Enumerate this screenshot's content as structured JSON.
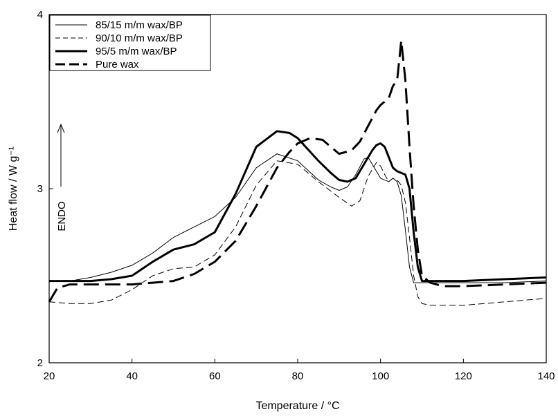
{
  "chart_data": {
    "type": "line",
    "xlabel": "Temperature / °C",
    "ylabel": "Heat flow / W g⁻¹",
    "xlim": [
      20,
      140
    ],
    "ylim": [
      2,
      4
    ],
    "xticks": [
      20,
      40,
      60,
      80,
      100,
      120,
      140
    ],
    "yticks": [
      2,
      3,
      4
    ],
    "grid": false,
    "legend_position": "top-left",
    "annotation": "ENDO",
    "series": [
      {
        "name": "85/15 m/m wax/BP",
        "style": "thin-solid",
        "x": [
          20,
          25,
          30,
          35,
          40,
          45,
          50,
          55,
          60,
          65,
          70,
          75,
          80,
          85,
          88,
          90,
          92,
          94,
          96,
          97,
          98,
          99,
          100,
          101,
          102,
          103,
          104,
          105,
          106,
          107,
          108,
          110,
          115,
          120,
          130,
          140
        ],
        "y": [
          2.47,
          2.47,
          2.49,
          2.52,
          2.56,
          2.63,
          2.72,
          2.78,
          2.84,
          2.95,
          3.12,
          3.2,
          3.16,
          3.05,
          3.01,
          2.99,
          3.01,
          3.08,
          3.17,
          3.18,
          3.14,
          3.1,
          3.06,
          3.05,
          3.04,
          3.06,
          3.04,
          2.96,
          2.76,
          2.55,
          2.46,
          2.46,
          2.46,
          2.46,
          2.46,
          2.47
        ]
      },
      {
        "name": "90/10 m/m wax/BP",
        "style": "thin-dashed",
        "x": [
          20,
          25,
          30,
          35,
          40,
          45,
          50,
          55,
          60,
          65,
          70,
          75,
          80,
          85,
          90,
          93,
          95,
          97,
          99,
          100,
          101,
          102,
          103,
          104,
          105,
          106,
          107,
          108,
          109,
          110,
          112,
          115,
          120,
          130,
          140
        ],
        "y": [
          2.35,
          2.34,
          2.34,
          2.36,
          2.42,
          2.5,
          2.54,
          2.55,
          2.62,
          2.78,
          3.02,
          3.16,
          3.14,
          3.04,
          2.95,
          2.9,
          2.93,
          3.07,
          3.15,
          3.13,
          3.08,
          3.04,
          3.06,
          3.05,
          3.02,
          2.92,
          2.72,
          2.5,
          2.38,
          2.34,
          2.33,
          2.33,
          2.33,
          2.35,
          2.37
        ]
      },
      {
        "name": "95/5 m/m wax/BP",
        "style": "thick-solid",
        "x": [
          20,
          25,
          30,
          35,
          40,
          45,
          50,
          55,
          60,
          65,
          70,
          75,
          78,
          80,
          85,
          88,
          90,
          92,
          94,
          96,
          98,
          99,
          100,
          101,
          102,
          103,
          104,
          105,
          106,
          107,
          108,
          109,
          110,
          112,
          115,
          120,
          130,
          140
        ],
        "y": [
          2.47,
          2.47,
          2.47,
          2.48,
          2.5,
          2.58,
          2.65,
          2.68,
          2.75,
          2.97,
          3.24,
          3.33,
          3.32,
          3.29,
          3.16,
          3.09,
          3.05,
          3.04,
          3.06,
          3.14,
          3.22,
          3.25,
          3.26,
          3.24,
          3.18,
          3.12,
          3.1,
          3.09,
          3.08,
          3.0,
          2.75,
          2.55,
          2.47,
          2.47,
          2.47,
          2.47,
          2.48,
          2.49
        ]
      },
      {
        "name": "Pure wax",
        "style": "thick-dashed",
        "x": [
          20,
          22,
          25,
          30,
          35,
          40,
          45,
          50,
          55,
          60,
          65,
          70,
          75,
          78,
          80,
          83,
          86,
          88,
          90,
          93,
          95,
          97,
          99,
          100,
          101,
          102,
          103,
          104,
          105,
          106,
          107,
          108,
          109,
          110,
          112,
          115,
          120,
          130,
          140
        ],
        "y": [
          2.35,
          2.43,
          2.45,
          2.45,
          2.45,
          2.45,
          2.46,
          2.47,
          2.51,
          2.58,
          2.7,
          2.9,
          3.12,
          3.21,
          3.26,
          3.29,
          3.28,
          3.24,
          3.2,
          3.22,
          3.27,
          3.36,
          3.45,
          3.48,
          3.5,
          3.52,
          3.59,
          3.62,
          3.85,
          3.62,
          3.24,
          2.9,
          2.65,
          2.5,
          2.46,
          2.44,
          2.44,
          2.45,
          2.46
        ]
      }
    ]
  }
}
